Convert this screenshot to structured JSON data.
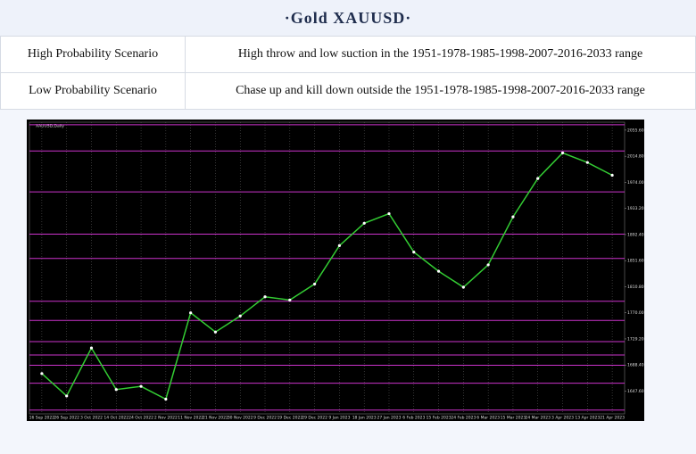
{
  "header": {
    "title": "·Gold  XAUUSD·"
  },
  "table": {
    "rows": [
      [
        "High Probability Scenario",
        "High throw and low suction in the 1951-1978-1985-1998-2007-2016-2033 range"
      ],
      [
        "Low Probability Scenario",
        "Chase up and kill down outside the 1951-1978-1985-1998-2007-2016-2033 range"
      ]
    ]
  },
  "chart_data": {
    "type": "line",
    "title": "XAUUSD,Daily",
    "categories": [
      "16 Sep 2022",
      "26 Sep 2022",
      "3 Oct 2022",
      "14 Oct 2022",
      "24 Oct 2022",
      "2 Nov 2022",
      "11 Nov 2022",
      "21 Nov 2022",
      "30 Nov 2022",
      "9 Dec 2022",
      "19 Dec 2022",
      "29 Dec 2022",
      "9 Jan 2023",
      "18 Jan 2023",
      "27 Jan 2023",
      "6 Feb 2023",
      "15 Feb 2023",
      "24 Feb 2023",
      "6 Mar 2023",
      "15 Mar 2023",
      "24 Mar 2023",
      "3 Apr 2023",
      "13 Apr 2023",
      "21 Apr 2023"
    ],
    "values": [
      1675,
      1640,
      1715,
      1650,
      1655,
      1635,
      1770,
      1740,
      1765,
      1795,
      1790,
      1815,
      1875,
      1910,
      1925,
      1865,
      1835,
      1810,
      1845,
      1920,
      1980,
      2020,
      2005,
      1985
    ],
    "color": "#33cc33",
    "levels": [
      2064,
      2023,
      1959,
      1893,
      1855,
      1788,
      1758,
      1725,
      1704,
      1688,
      1660,
      1618
    ],
    "level_color": "#cc33cc",
    "ylim": [
      1612,
      2068
    ],
    "yticks": [
      {
        "value": 2055.6,
        "label": "2055.60"
      },
      {
        "value": 2014.8,
        "label": "2014.80"
      },
      {
        "value": 1974,
        "label": "1974.00"
      },
      {
        "value": 1933.2,
        "label": "1933.20"
      },
      {
        "value": 1892.4,
        "label": "1892.40"
      },
      {
        "value": 1851.6,
        "label": "1851.60"
      },
      {
        "value": 1810.8,
        "label": "1810.80"
      },
      {
        "value": 1770,
        "label": "1770.00"
      },
      {
        "value": 1729.2,
        "label": "1729.20"
      },
      {
        "value": 1688.4,
        "label": "1688.40"
      },
      {
        "value": 1647.6,
        "label": "1647.60"
      }
    ],
    "grid": true
  }
}
